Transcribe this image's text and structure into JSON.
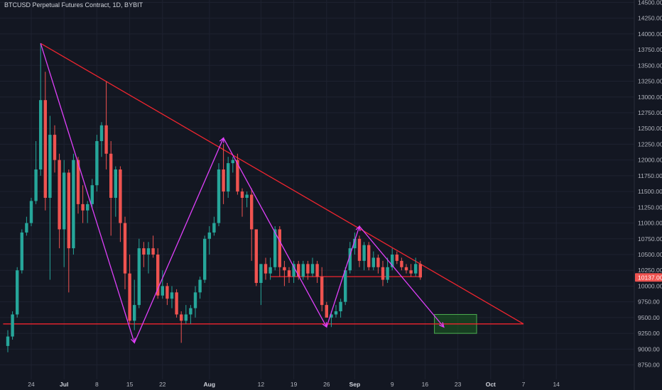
{
  "symbol_title": "BTCUSD Perpetual Futures Contract, 1D, BYBIT",
  "colors": {
    "background": "#131722",
    "grid": "#1e2230",
    "up": "#26a69a",
    "down": "#ef5350",
    "trendline": "#f0252f",
    "zigzag": "#e040fb",
    "target_box_fill": "#1b5e20",
    "target_box_stroke": "#4caf50",
    "price_badge": "#ef5350"
  },
  "last_price_label": "10137.00",
  "chart_data": {
    "type": "candlestick",
    "title": "BTCUSD Perpetual Futures Contract, 1D, BYBIT",
    "y_range": [
      8600,
      14600
    ],
    "y_ticks": [
      14500,
      14250,
      14000,
      13750,
      13500,
      13250,
      13000,
      12750,
      12500,
      12250,
      12000,
      11750,
      11500,
      11250,
      11000,
      10750,
      10500,
      10250,
      10000,
      9750,
      9500,
      9250,
      9000,
      8750
    ],
    "y_tick_labels": [
      "14500.00",
      "14250.00",
      "14000.00",
      "13750.00",
      "13500.00",
      "13250.00",
      "13000.00",
      "12750.00",
      "12500.00",
      "12250.00",
      "12000.00",
      "11750.00",
      "11500.00",
      "11250.00",
      "11000.00",
      "10750.00",
      "10500.00",
      "10250.00",
      "10000.00",
      "9750.00",
      "9500.00",
      "9250.00",
      "9000.00",
      "8750.00"
    ],
    "x_ticks": [
      {
        "day": 24,
        "label": "24",
        "bold": false
      },
      {
        "day": 31,
        "label": "Jul",
        "bold": true
      },
      {
        "day": 38,
        "label": "8",
        "bold": false
      },
      {
        "day": 45,
        "label": "15",
        "bold": false
      },
      {
        "day": 52,
        "label": "22",
        "bold": false
      },
      {
        "day": 62,
        "label": "Aug",
        "bold": true
      },
      {
        "day": 73,
        "label": "12",
        "bold": false
      },
      {
        "day": 80,
        "label": "19",
        "bold": false
      },
      {
        "day": 87,
        "label": "26",
        "bold": false
      },
      {
        "day": 93,
        "label": "Sep",
        "bold": true
      },
      {
        "day": 101,
        "label": "9",
        "bold": false
      },
      {
        "day": 108,
        "label": "16",
        "bold": false
      },
      {
        "day": 115,
        "label": "23",
        "bold": false
      },
      {
        "day": 122,
        "label": "Oct",
        "bold": true
      },
      {
        "day": 129,
        "label": "7",
        "bold": false
      },
      {
        "day": 136,
        "label": "14",
        "bold": false
      }
    ],
    "candles": [
      {
        "day": 19,
        "o": 9050,
        "h": 9300,
        "l": 8950,
        "c": 9200
      },
      {
        "day": 20,
        "o": 9200,
        "h": 9600,
        "l": 9150,
        "c": 9550
      },
      {
        "day": 21,
        "o": 9550,
        "h": 10300,
        "l": 9500,
        "c": 10250
      },
      {
        "day": 22,
        "o": 10250,
        "h": 10900,
        "l": 10200,
        "c": 10850
      },
      {
        "day": 23,
        "o": 10850,
        "h": 11100,
        "l": 10800,
        "c": 11000
      },
      {
        "day": 24,
        "o": 11000,
        "h": 11400,
        "l": 10950,
        "c": 11350
      },
      {
        "day": 25,
        "o": 11350,
        "h": 12300,
        "l": 11300,
        "c": 11850
      },
      {
        "day": 26,
        "o": 11850,
        "h": 13850,
        "l": 11750,
        "c": 12950
      },
      {
        "day": 27,
        "o": 12950,
        "h": 13400,
        "l": 11200,
        "c": 11400
      },
      {
        "day": 28,
        "o": 11400,
        "h": 12700,
        "l": 10100,
        "c": 12400
      },
      {
        "day": 29,
        "o": 12400,
        "h": 12550,
        "l": 11800,
        "c": 12000
      },
      {
        "day": 30,
        "o": 12000,
        "h": 12100,
        "l": 10600,
        "c": 10900
      },
      {
        "day": 31,
        "o": 10900,
        "h": 12000,
        "l": 10300,
        "c": 11800
      },
      {
        "day": 32,
        "o": 11800,
        "h": 11850,
        "l": 9900,
        "c": 10600
      },
      {
        "day": 33,
        "o": 10600,
        "h": 12100,
        "l": 10500,
        "c": 12000
      },
      {
        "day": 34,
        "o": 12000,
        "h": 12050,
        "l": 11150,
        "c": 11300
      },
      {
        "day": 35,
        "o": 11300,
        "h": 11600,
        "l": 11000,
        "c": 11200
      },
      {
        "day": 36,
        "o": 11200,
        "h": 11350,
        "l": 11000,
        "c": 11300
      },
      {
        "day": 37,
        "o": 11300,
        "h": 11700,
        "l": 11250,
        "c": 11600
      },
      {
        "day": 38,
        "o": 11600,
        "h": 12400,
        "l": 11500,
        "c": 12300
      },
      {
        "day": 39,
        "o": 12300,
        "h": 12600,
        "l": 12050,
        "c": 12550
      },
      {
        "day": 40,
        "o": 12550,
        "h": 13250,
        "l": 11850,
        "c": 12100
      },
      {
        "day": 41,
        "o": 12100,
        "h": 12300,
        "l": 10800,
        "c": 11400
      },
      {
        "day": 42,
        "o": 11400,
        "h": 11900,
        "l": 11100,
        "c": 11850
      },
      {
        "day": 43,
        "o": 11850,
        "h": 11900,
        "l": 10700,
        "c": 11000
      },
      {
        "day": 44,
        "o": 11000,
        "h": 11100,
        "l": 9950,
        "c": 10200
      },
      {
        "day": 45,
        "o": 10200,
        "h": 10500,
        "l": 9400,
        "c": 9450
      },
      {
        "day": 46,
        "o": 9450,
        "h": 10100,
        "l": 9300,
        "c": 9700
      },
      {
        "day": 47,
        "o": 9700,
        "h": 10750,
        "l": 9650,
        "c": 10600
      },
      {
        "day": 48,
        "o": 10600,
        "h": 10700,
        "l": 10300,
        "c": 10500
      },
      {
        "day": 49,
        "o": 10500,
        "h": 10700,
        "l": 10200,
        "c": 10600
      },
      {
        "day": 50,
        "o": 10600,
        "h": 10800,
        "l": 10450,
        "c": 10500
      },
      {
        "day": 51,
        "o": 10500,
        "h": 10600,
        "l": 9800,
        "c": 9850
      },
      {
        "day": 52,
        "o": 9850,
        "h": 10250,
        "l": 9800,
        "c": 10000
      },
      {
        "day": 53,
        "o": 10000,
        "h": 10050,
        "l": 9700,
        "c": 9800
      },
      {
        "day": 54,
        "o": 9800,
        "h": 10000,
        "l": 9650,
        "c": 9900
      },
      {
        "day": 55,
        "o": 9900,
        "h": 9950,
        "l": 9500,
        "c": 9550
      },
      {
        "day": 56,
        "o": 9550,
        "h": 9600,
        "l": 9100,
        "c": 9450
      },
      {
        "day": 57,
        "o": 9450,
        "h": 9700,
        "l": 9400,
        "c": 9550
      },
      {
        "day": 58,
        "o": 9550,
        "h": 9700,
        "l": 9400,
        "c": 9650
      },
      {
        "day": 59,
        "o": 9650,
        "h": 10000,
        "l": 9500,
        "c": 9900
      },
      {
        "day": 60,
        "o": 9900,
        "h": 10150,
        "l": 9800,
        "c": 10100
      },
      {
        "day": 61,
        "o": 10100,
        "h": 10800,
        "l": 10050,
        "c": 10750
      },
      {
        "day": 62,
        "o": 10750,
        "h": 10950,
        "l": 10500,
        "c": 10850
      },
      {
        "day": 63,
        "o": 10850,
        "h": 11100,
        "l": 10800,
        "c": 11000
      },
      {
        "day": 64,
        "o": 11000,
        "h": 11950,
        "l": 10950,
        "c": 11850
      },
      {
        "day": 65,
        "o": 11850,
        "h": 12250,
        "l": 11300,
        "c": 11500
      },
      {
        "day": 66,
        "o": 11500,
        "h": 12050,
        "l": 11400,
        "c": 11950
      },
      {
        "day": 67,
        "o": 11950,
        "h": 12050,
        "l": 11800,
        "c": 12000
      },
      {
        "day": 68,
        "o": 12000,
        "h": 12100,
        "l": 11450,
        "c": 11500
      },
      {
        "day": 69,
        "o": 11500,
        "h": 11550,
        "l": 11100,
        "c": 11400
      },
      {
        "day": 70,
        "o": 11400,
        "h": 11500,
        "l": 11250,
        "c": 11450
      },
      {
        "day": 71,
        "o": 11450,
        "h": 11550,
        "l": 10400,
        "c": 10900
      },
      {
        "day": 72,
        "o": 10900,
        "h": 10900,
        "l": 10000,
        "c": 10050
      },
      {
        "day": 73,
        "o": 10050,
        "h": 10350,
        "l": 9700,
        "c": 10350
      },
      {
        "day": 74,
        "o": 10350,
        "h": 10450,
        "l": 10100,
        "c": 10200
      },
      {
        "day": 75,
        "o": 10200,
        "h": 10450,
        "l": 10100,
        "c": 10300
      },
      {
        "day": 76,
        "o": 10300,
        "h": 10950,
        "l": 10250,
        "c": 10900
      },
      {
        "day": 77,
        "o": 10900,
        "h": 10950,
        "l": 10150,
        "c": 10300
      },
      {
        "day": 78,
        "o": 10300,
        "h": 10400,
        "l": 10000,
        "c": 10250
      },
      {
        "day": 79,
        "o": 10250,
        "h": 10300,
        "l": 10050,
        "c": 10150
      },
      {
        "day": 80,
        "o": 10150,
        "h": 10400,
        "l": 10050,
        "c": 10350
      },
      {
        "day": 81,
        "o": 10350,
        "h": 10400,
        "l": 10100,
        "c": 10150
      },
      {
        "day": 82,
        "o": 10150,
        "h": 10400,
        "l": 10100,
        "c": 10350
      },
      {
        "day": 83,
        "o": 10350,
        "h": 10400,
        "l": 10100,
        "c": 10200
      },
      {
        "day": 84,
        "o": 10200,
        "h": 10450,
        "l": 10150,
        "c": 10350
      },
      {
        "day": 85,
        "o": 10350,
        "h": 10400,
        "l": 10050,
        "c": 10150
      },
      {
        "day": 86,
        "o": 10150,
        "h": 10300,
        "l": 9600,
        "c": 9700
      },
      {
        "day": 87,
        "o": 9700,
        "h": 9750,
        "l": 9500,
        "c": 9500
      },
      {
        "day": 88,
        "o": 9500,
        "h": 9600,
        "l": 9350,
        "c": 9550
      },
      {
        "day": 89,
        "o": 9550,
        "h": 9700,
        "l": 9500,
        "c": 9600
      },
      {
        "day": 90,
        "o": 9600,
        "h": 9800,
        "l": 9500,
        "c": 9750
      },
      {
        "day": 91,
        "o": 9750,
        "h": 10300,
        "l": 9700,
        "c": 10250
      },
      {
        "day": 92,
        "o": 10250,
        "h": 10700,
        "l": 10200,
        "c": 10600
      },
      {
        "day": 93,
        "o": 10600,
        "h": 10850,
        "l": 10500,
        "c": 10750
      },
      {
        "day": 94,
        "o": 10750,
        "h": 10800,
        "l": 10300,
        "c": 10400
      },
      {
        "day": 95,
        "o": 10400,
        "h": 10700,
        "l": 10250,
        "c": 10650
      },
      {
        "day": 96,
        "o": 10650,
        "h": 10700,
        "l": 10250,
        "c": 10300
      },
      {
        "day": 97,
        "o": 10300,
        "h": 10550,
        "l": 10250,
        "c": 10450
      },
      {
        "day": 98,
        "o": 10450,
        "h": 10500,
        "l": 10200,
        "c": 10300
      },
      {
        "day": 99,
        "o": 10300,
        "h": 10400,
        "l": 10000,
        "c": 10100
      },
      {
        "day": 100,
        "o": 10100,
        "h": 10450,
        "l": 10050,
        "c": 10300
      },
      {
        "day": 101,
        "o": 10300,
        "h": 10600,
        "l": 10250,
        "c": 10500
      },
      {
        "day": 102,
        "o": 10500,
        "h": 10550,
        "l": 10350,
        "c": 10400
      },
      {
        "day": 103,
        "o": 10400,
        "h": 10450,
        "l": 10250,
        "c": 10300
      },
      {
        "day": 104,
        "o": 10300,
        "h": 10350,
        "l": 10200,
        "c": 10250
      },
      {
        "day": 105,
        "o": 10250,
        "h": 10350,
        "l": 10150,
        "c": 10200
      },
      {
        "day": 106,
        "o": 10200,
        "h": 10450,
        "l": 10150,
        "c": 10350
      },
      {
        "day": 107,
        "o": 10350,
        "h": 10400,
        "l": 10100,
        "c": 10137
      }
    ],
    "trendlines": [
      {
        "name": "descending-resistance",
        "from": {
          "day": 26,
          "price": 13850
        },
        "to": {
          "day": 129,
          "price": 9400
        }
      },
      {
        "name": "support-9400",
        "from": {
          "day": 18,
          "price": 9400
        },
        "to": {
          "day": 129,
          "price": 9400
        }
      },
      {
        "name": "support-10150",
        "from": {
          "day": 75,
          "price": 10150
        },
        "to": {
          "day": 107,
          "price": 10150
        }
      }
    ],
    "zigzag": [
      {
        "day": 26,
        "price": 13850
      },
      {
        "day": 46,
        "price": 9100
      },
      {
        "day": 65,
        "price": 12350
      },
      {
        "day": 87,
        "price": 9350
      },
      {
        "day": 94,
        "price": 10950
      },
      {
        "day": 112,
        "price": 9350
      }
    ],
    "target_box": {
      "day_from": 110,
      "day_to": 119,
      "price_from": 9250,
      "price_to": 9550
    },
    "last_price": 10137
  }
}
